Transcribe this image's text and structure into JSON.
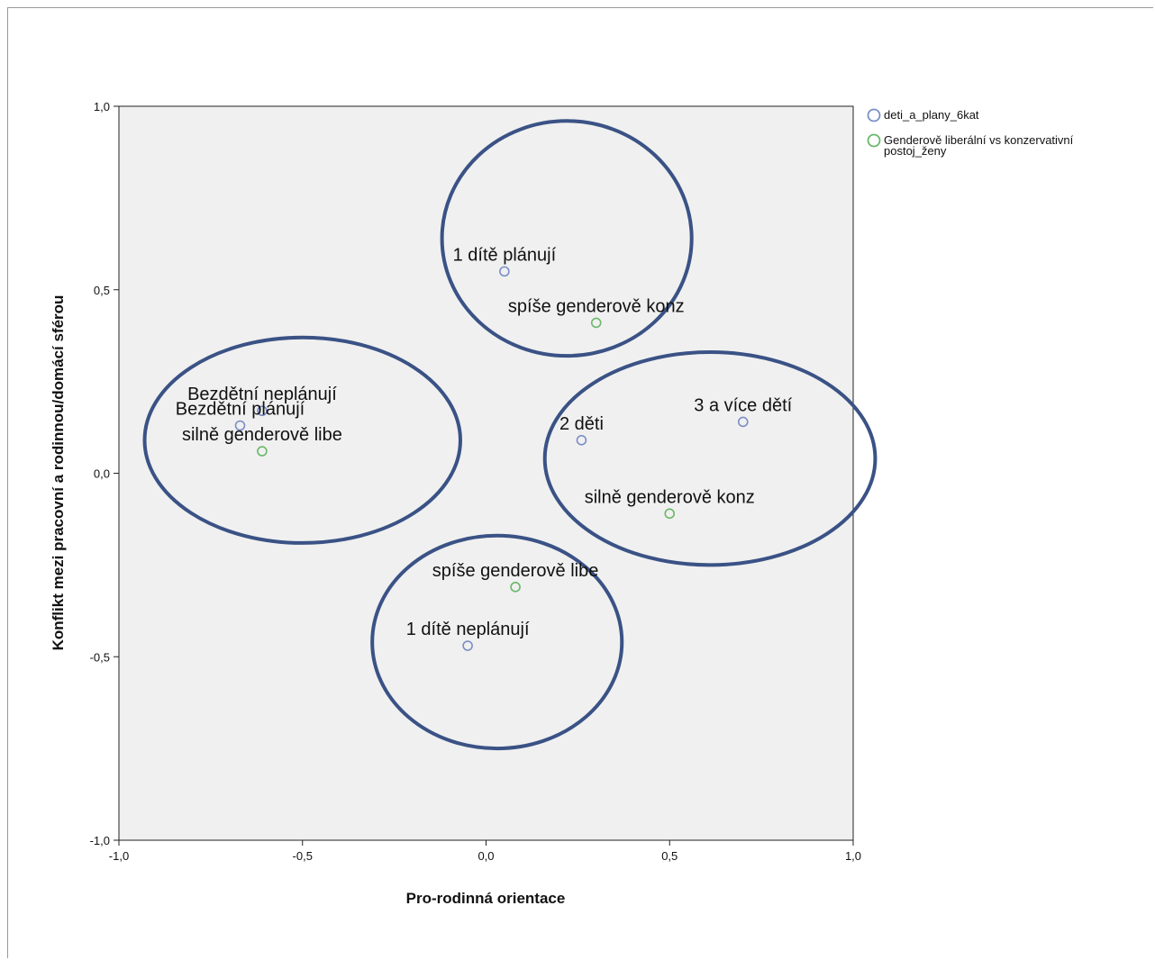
{
  "chart_data": {
    "type": "scatter",
    "title": "",
    "xlabel": "Pro-rodinná orientace",
    "ylabel": "Konflikt mezi pracovní a rodinnou/domácí sférou",
    "xlim": [
      -1.0,
      1.0
    ],
    "ylim": [
      -1.0,
      1.0
    ],
    "x_ticks": [
      "-1,0",
      "-0,5",
      "0,0",
      "0,5",
      "1,0"
    ],
    "y_ticks": [
      "1,0",
      "0,5",
      "0,0",
      "-0,5",
      "-1,0"
    ],
    "grid": false,
    "legend_position": "top-right",
    "series": [
      {
        "name": "deti_a_plany_6kat",
        "color": "#7b8fc7",
        "points": [
          {
            "label": "1 dítě plánují",
            "x": 0.05,
            "y": 0.55
          },
          {
            "label": "Bezdětní neplánují",
            "x": -0.61,
            "y": 0.17
          },
          {
            "label": "Bezdětní plánují",
            "x": -0.67,
            "y": 0.13
          },
          {
            "label": "2 děti",
            "x": 0.26,
            "y": 0.09
          },
          {
            "label": "3 a více dětí",
            "x": 0.7,
            "y": 0.14
          },
          {
            "label": "1 dítě neplánují",
            "x": -0.05,
            "y": -0.47
          }
        ]
      },
      {
        "name": "Genderově liberální vs konzervativní postoj_ženy",
        "legend_lines": [
          "Genderově liberální vs konzervativní",
          "postoj_ženy"
        ],
        "color": "#6ab86a",
        "points": [
          {
            "label": "spíše genderově konz",
            "x": 0.3,
            "y": 0.41
          },
          {
            "label": "silně genderově libe",
            "x": -0.61,
            "y": 0.06
          },
          {
            "label": "silně genderově konz",
            "x": 0.5,
            "y": -0.11
          },
          {
            "label": "spíše genderově libe",
            "x": 0.08,
            "y": -0.31
          }
        ]
      }
    ],
    "annotations": [
      {
        "type": "ellipse",
        "cx": 0.22,
        "cy": 0.64,
        "rx": 0.34,
        "ry": 0.32
      },
      {
        "type": "ellipse",
        "cx": -0.5,
        "cy": 0.09,
        "rx": 0.43,
        "ry": 0.28
      },
      {
        "type": "ellipse",
        "cx": 0.61,
        "cy": 0.04,
        "rx": 0.45,
        "ry": 0.29
      },
      {
        "type": "ellipse",
        "cx": 0.03,
        "cy": -0.46,
        "rx": 0.34,
        "ry": 0.29
      }
    ],
    "annotation_color": "#3a5285"
  }
}
